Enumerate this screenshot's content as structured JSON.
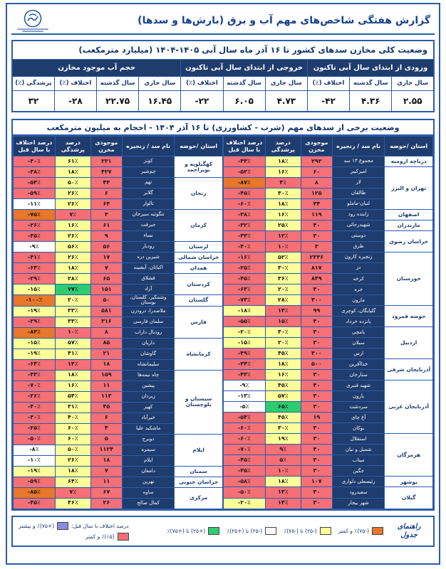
{
  "page": {
    "title": "گزارش هفتگی شاخص‌های مهم آب و برق (بارش‌ها و سدها)"
  },
  "summary": {
    "title": "وضعیت کلی مخازن سدهای کشور تا ۱۶ آذر ماه سال آبی ۱۴۰۵-۱۴۰۴ (میلیارد مترمکعب)",
    "groups": [
      "ورودی از ابتدای سال آبی تاکنون",
      "خروجی از ابتدای سال آبی تاکنون",
      "حجم آب موجود مخازن"
    ],
    "sub": [
      "سال جاری",
      "سال گذشته",
      "اختلاف (٪)",
      "سال جاری",
      "سال گذشته",
      "اختلاف (٪)",
      "سال جاری",
      "سال گذشته",
      "اختلاف (٪)",
      "پرشدگی (٪)"
    ],
    "values": [
      "۲.۵۵",
      "۴.۳۶",
      "-۴۲",
      "۴.۷۳",
      "۶.۰۵",
      "-۲۲",
      "۱۶.۴۵",
      "۲۲.۷۵",
      "-۲۸",
      "۳۲"
    ]
  },
  "dams": {
    "title": "وضعیت برخی از سدهای مهم (شرب - کشاورزی) تا ۱۶ آذر ۱۴۰۴ - احجام به میلیون مترمکعب",
    "columns": [
      "استان /حوضه",
      "نام سد / زنجیره",
      "موجودی مخزن",
      "درصد پرشدگی",
      "درصد اختلاف با سال قبل"
    ],
    "right_groups": [
      {
        "province": "دریاچه ارومیه",
        "rows": [
          [
            "مجموع ۱۳ سد",
            "۲۹۲",
            "۱۸٪",
            "-۴۴٪",
            "ryr"
          ]
        ]
      },
      {
        "province": "تهران و البرز",
        "rows": [
          [
            "امیرکبیر",
            "۶۰",
            "۱۶٪",
            "-۵۲٪",
            "ryr"
          ],
          [
            "لار",
            "۸",
            "۴٪",
            "-۸۷٪",
            "rro"
          ],
          [
            "طالقان",
            "۱۲۵",
            "۳۰٪",
            "-۴۵٪",
            "ryr"
          ],
          [
            "لتیان-ماملو",
            "۳۴",
            "۱۸٪",
            "-۶۰٪",
            "ryr"
          ]
        ]
      },
      {
        "province": "اصفهان",
        "rows": [
          [
            "زاینده رود",
            "۱۱۹",
            "۱۶٪",
            "-۳۸٪",
            "ryr"
          ]
        ]
      },
      {
        "province": "مازندران",
        "rows": [
          [
            "شهیدرجائی",
            "۴۰",
            "۲۵٪",
            "-۳۲٪",
            "ryr"
          ]
        ]
      },
      {
        "province": "خراسان رضوی",
        "rows": [
          [
            "دوستی",
            "۳۰",
            "۱۲٪",
            "-۳۳٪",
            "rrr"
          ],
          [
            "طرق",
            "۳",
            "۱۰٪",
            "-۴۰٪",
            "rrr"
          ]
        ]
      },
      {
        "province": "خوزستان",
        "rows": [
          [
            "زنجیره کارون",
            "۲۳۳۶",
            "۵۲٪",
            "-۱۶٪",
            "ryr"
          ],
          [
            "دز",
            "۸۱۷",
            "۳۰٪",
            "-۲۵٪",
            "ryr"
          ],
          [
            "کرخه",
            "۸۴۹",
            "۳۶٪",
            "-۴۵٪",
            "ryr"
          ],
          [
            "جره",
            "۳۰",
            "۲۰٪",
            "-۶۳٪",
            "ryr"
          ],
          [
            "مارون",
            "۳۰۰",
            "۲۸٪",
            "-۷۳٪",
            "ryr"
          ]
        ]
      },
      {
        "province": "حوضه قمرود",
        "rows": [
          [
            "گلپایگان، کوچری",
            "۹۹",
            "۱۴٪",
            "-۱۸٪",
            "rry"
          ],
          [
            "پانزده خرداد",
            "۳۰",
            "۱۵٪",
            "-۵۵٪",
            "rrr"
          ]
        ]
      },
      {
        "province": "اردبیل",
        "rows": [
          [
            "یامچی",
            "۳۰",
            "۴۰٪",
            "-۲۰٪",
            "ryy"
          ],
          [
            "سبلان",
            "۳۰",
            "۲۰٪",
            "-۱۵٪",
            "ryy"
          ],
          [
            "ارس",
            "۳۰۰",
            "۴۵٪",
            "-۴۹٪",
            "ryr"
          ]
        ]
      },
      {
        "province": "آذربایجان شرقی",
        "rows": [
          [
            "خداآفرین",
            "۵۰۰",
            "۱۸٪",
            "-۳۴٪",
            "ryr"
          ],
          [
            "ستارخان",
            "۳۰",
            "۱۶٪",
            "-۴۳٪",
            "ryr"
          ]
        ]
      },
      {
        "province": "آذربایجان غربی",
        "rows": [
          [
            "شهید قنبری",
            "۳۰",
            "۴۵٪",
            "-۹٪",
            "ryw"
          ],
          [
            "بارون",
            "۳۰",
            "۵۷٪",
            "-۱۳٪",
            "ryw"
          ],
          [
            "سردشت",
            "۳۰",
            "۶۵٪",
            "-۵٪",
            "rgw"
          ],
          [
            "آغ چای",
            "۱۹",
            "۴۵٪",
            "-۵۴٪",
            "ryr"
          ],
          [
            "بوکان",
            "۳۰",
            "۳۰٪",
            "-۶۰٪",
            "ryr"
          ]
        ]
      },
      {
        "province": "هرمزگان",
        "rows": [
          [
            "استقلال",
            "۳۰",
            "۱۹٪",
            "-۶۰٪",
            "ryr"
          ],
          [
            "شمیل و نیان",
            "۳۰",
            "۹٪",
            "-۷۰٪",
            "rrr"
          ],
          [
            "میناب",
            "۳۰",
            "۵٪",
            "-۴۵٪",
            "rrr"
          ],
          [
            "جگین",
            "۳۰",
            "۱۰٪",
            "-۳۵٪",
            "rrr"
          ]
        ]
      },
      {
        "province": "بوشهر",
        "rows": [
          [
            "رئیسعلی دلواری",
            "۱۰۷",
            "۱۸٪",
            "-۵۸٪",
            "ryr"
          ]
        ]
      },
      {
        "province": "گیلان",
        "rows": [
          [
            "سفیدرود",
            "۳۰",
            "۱۴٪",
            "-۵۰٪",
            "rrr"
          ],
          [
            "شهر بیجار",
            "۳۰",
            "۱۴٪",
            "-۲۰٪",
            "rry"
          ]
        ]
      }
    ],
    "left_groups": [
      {
        "province": "کهگیلویه و بویراحمد",
        "rows": [
          [
            "کوثر",
            "۳۳۱",
            "۶۱٪",
            "-۳۰٪",
            "ryr"
          ],
          [
            "چم‌شیر",
            "۴۲۷",
            "۱۸٪",
            "-۳۸٪",
            "ryr"
          ]
        ]
      },
      {
        "province": "زنجان",
        "rows": [
          [
            "تهم",
            "۴۳",
            "۵۰٪",
            "-۵۴٪",
            "ryr"
          ],
          [
            "گلابر",
            "۶",
            "۲۶٪",
            "-۵۹٪",
            "ryr"
          ],
          [
            "تالوار",
            "۶۴",
            "۲۶٪",
            "-۱۱٪",
            "ryw"
          ]
        ]
      },
      {
        "province": "کرمان",
        "rows": [
          [
            "تنگوئیه سیرجان",
            "۳",
            "۷٪",
            "-۷۵٪",
            "rro"
          ],
          [
            "جیرفت",
            "۶۱",
            "۱۶٪",
            "-۲۶٪",
            "ryr"
          ],
          [
            "نساء",
            "۹",
            "۲۶٪",
            "-۳۵٪",
            "ryr"
          ]
        ]
      },
      {
        "province": "لرستان",
        "rows": [
          [
            "رودبار",
            "۵۶",
            "۵۶٪",
            "-۹٪",
            "ryw"
          ]
        ]
      },
      {
        "province": "خراسان شمالی",
        "rows": [
          [
            "شیرین دره",
            "۱۷",
            "۲۶٪",
            "-۴۱٪",
            "ryr"
          ]
        ]
      },
      {
        "province": "همدان",
        "rows": [
          [
            "اکباتان، آبشینه",
            "۷",
            "۱۸٪",
            "-۶۴٪",
            "ryr"
          ]
        ]
      },
      {
        "province": "کردستان",
        "rows": [
          [
            "قشلاق",
            "۶۵",
            "۲۸٪",
            "-۲۹٪",
            "ryr"
          ],
          [
            "آزاد",
            "۱۵۱",
            "۷۷٪",
            "-۱۵٪",
            "rgy"
          ]
        ]
      },
      {
        "province": "گلستان",
        "rows": [
          [
            "وشمگیر، گلستان، بوستان",
            "۵۰",
            "۲۰٪",
            "-۱۰۰٪",
            "ryo"
          ]
        ]
      },
      {
        "province": "فارس",
        "rows": [
          [
            "ملاصدرا، درودزن",
            "۵۸۱",
            "۳۳٪",
            "-۱۹٪",
            "ryy"
          ],
          [
            "سلمان فارسی",
            "۳۱۶",
            "۳۳٪",
            "-۲۹٪",
            "ryr"
          ],
          [
            "رودبال داراب",
            "۸",
            "۱۰٪",
            "-۸۳٪",
            "rro"
          ]
        ]
      },
      {
        "province": "کرمانشاه",
        "rows": [
          [
            "داریان",
            "۸۵",
            "۵۷٪",
            "-۱۵٪",
            "ryy"
          ],
          [
            "گاوشان",
            "۲۱",
            "۴۱٪",
            "-۱۹٪",
            "ryy"
          ],
          [
            "سلیمانشاه",
            "۱۸",
            "۱۴٪",
            "-۶۴٪",
            "rrr"
          ]
        ]
      },
      {
        "province": "سیستان و بلوچستان",
        "rows": [
          [
            "چاه نیمه‌ها",
            "۱۵۹",
            "۱۸٪",
            "-۴۳٪",
            "ryr"
          ],
          [
            "پیشین",
            "۱۱",
            "۱۶٪",
            "-۷۰٪",
            "ryr"
          ],
          [
            "زیردان",
            "۱۱۳",
            "۵۴٪",
            "-۲۶٪",
            "ryr"
          ],
          [
            "کهیر",
            "۴۵",
            "۳۱٪",
            "-۴۰٪",
            "ryr"
          ],
          [
            "خیرآباد",
            "۶",
            "۴۰٪",
            "-۳۰٪",
            "ryr"
          ],
          [
            "ماشکید علیا",
            "۴",
            "۶۰٪",
            "-۲۵٪",
            "ryr"
          ]
        ]
      },
      {
        "province": "ایلام",
        "rows": [
          [
            "دویرج",
            "۵",
            "۶۰٪",
            "-۵۰٪",
            "ryr"
          ],
          [
            "سیمره",
            "۱۱۲۴",
            "۵۰٪",
            "-۸٪",
            "ryw"
          ],
          [
            "ایلام",
            "۱۸",
            "۲۶٪",
            "-۱۰٪",
            "ryw"
          ]
        ]
      },
      {
        "province": "سمنان",
        "rows": [
          [
            "دامغان",
            "۷",
            "۱۸٪",
            "-۱۹٪",
            "ryy"
          ]
        ]
      },
      {
        "province": "خراسان جنوبی",
        "rows": [
          [
            "نهرین",
            "۱۱",
            "۶۴٪",
            "-۵۹٪",
            "ryr"
          ]
        ]
      },
      {
        "province": "مرکزی",
        "rows": [
          [
            "ساوه",
            "۶۷",
            "۷٪",
            "-۸۵٪",
            "rro"
          ],
          [
            "کمال صالح",
            "۲۶",
            "۴۶٪",
            "-۴۵٪",
            "ryr"
          ]
        ]
      }
    ]
  },
  "legend": {
    "title": "راهنمای جدول",
    "items": [
      {
        "color": "#e8762b",
        "label": "(-۷۵)٪ و کمتر"
      },
      {
        "color": "#ffff99",
        "label": "(-۲۵) تا (-۷۵)٪"
      },
      {
        "color": "#ffffff",
        "label": "(-۲۵) تا (+۲۵)٪"
      },
      {
        "color": "#2ecc71",
        "label": "(+۲۵) تا (+۷۵)٪"
      }
    ],
    "diff_note": "درصد اختلاف با سال قبل:",
    "diff_high": {
      "color": "#8b8be0",
      "label": "(+۷۵)٪ و بیشتر"
    },
    "low_fill": {
      "color": "#f46f76",
      "label": "(۱۵)٪ و کمتر"
    }
  },
  "colors": {
    "navy_header": "#1f3c6e",
    "frame_blue": "#2a5caa",
    "title_blue": "#16418e",
    "cell_red": "#f46f76",
    "cell_yellow": "#ffff99",
    "cell_green": "#2ecc71",
    "cell_orange": "#e8762b",
    "cell_purple": "#8b8be0"
  }
}
